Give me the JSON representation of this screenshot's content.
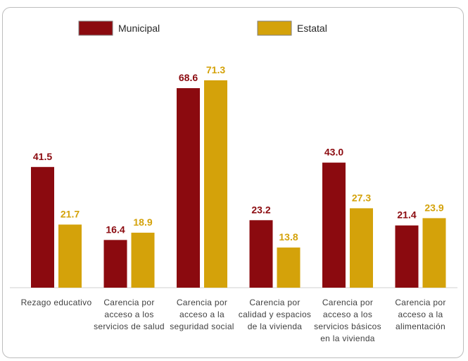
{
  "chart_data": {
    "type": "bar",
    "categories": [
      "Rezago educativo",
      "Carencia por acceso a los servicios de salud",
      "Carencia por acceso a la seguridad social",
      "Carencia por calidad y espacios de la vivienda",
      "Carencia por acceso a los servicios básicos en la vivienda",
      "Carencia por acceso a la alimentación"
    ],
    "series": [
      {
        "name": "Municipal",
        "color": "#8b0a0f",
        "values": [
          41.5,
          16.4,
          68.6,
          23.2,
          43.0,
          21.4
        ],
        "value_labels": [
          "41.5",
          "16.4",
          "68.6",
          "23.2",
          "43.0",
          "21.4"
        ]
      },
      {
        "name": "Estatal",
        "color": "#d4a20a",
        "values": [
          21.7,
          18.9,
          71.3,
          13.8,
          27.3,
          23.9
        ],
        "value_labels": [
          "21.7",
          "18.9",
          "71.3",
          "13.8",
          "27.3",
          "23.9"
        ]
      }
    ],
    "legend": "top"
  }
}
